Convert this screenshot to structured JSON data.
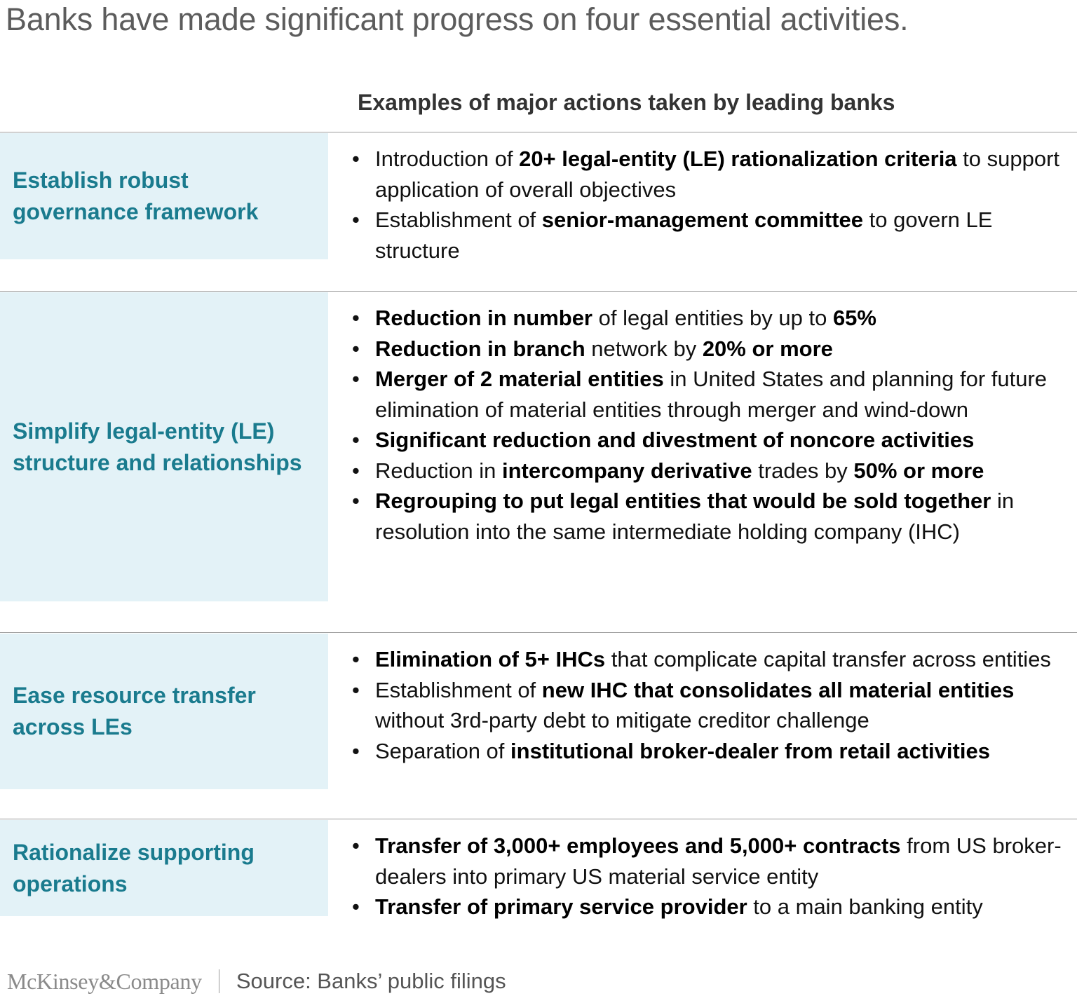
{
  "title": "Banks have made significant progress on four essential activities.",
  "column_header": "Examples of major actions taken by leading banks",
  "rows": [
    {
      "label": "Establish robust governance framework",
      "bullets": [
        [
          {
            "t": "Introduction of ",
            "b": false
          },
          {
            "t": "20+ legal-entity (LE) rationalization criteria",
            "b": true
          },
          {
            "t": " to support application of overall objectives",
            "b": false
          }
        ],
        [
          {
            "t": "Establishment of ",
            "b": false
          },
          {
            "t": "senior-management committee",
            "b": true
          },
          {
            "t": " to govern LE structure",
            "b": false
          }
        ]
      ]
    },
    {
      "label": "Simplify legal-entity (LE) structure and relationships",
      "bullets": [
        [
          {
            "t": "Reduction in number",
            "b": true
          },
          {
            "t": " of legal entities by up to ",
            "b": false
          },
          {
            "t": "65%",
            "b": true
          }
        ],
        [
          {
            "t": "Reduction in branch",
            "b": true
          },
          {
            "t": " network by ",
            "b": false
          },
          {
            "t": "20% or more",
            "b": true
          }
        ],
        [
          {
            "t": "Merger of 2 material entities",
            "b": true
          },
          {
            "t": " in United States and planning for future elimination of material entities through merger and wind-down",
            "b": false
          }
        ],
        [
          {
            "t": "Significant reduction and divestment of noncore activities",
            "b": true
          }
        ],
        [
          {
            "t": "Reduction in ",
            "b": false
          },
          {
            "t": "intercompany derivative",
            "b": true
          },
          {
            "t": " trades by ",
            "b": false
          },
          {
            "t": "50% or more",
            "b": true
          }
        ],
        [
          {
            "t": "Regrouping to put legal entities that would be sold together",
            "b": true
          },
          {
            "t": " in resolution into the same intermediate holding company (IHC)",
            "b": false
          }
        ]
      ]
    },
    {
      "label": "Ease resource transfer across LEs",
      "bullets": [
        [
          {
            "t": "Elimination of 5+ IHCs",
            "b": true
          },
          {
            "t": " that complicate capital transfer across entities",
            "b": false
          }
        ],
        [
          {
            "t": "Establishment of ",
            "b": false
          },
          {
            "t": "new IHC that consolidates all material entities",
            "b": true
          },
          {
            "t": " without 3rd-party debt to mitigate creditor challenge",
            "b": false
          }
        ],
        [
          {
            "t": "Separation of ",
            "b": false
          },
          {
            "t": "institutional broker-dealer from retail activities",
            "b": true
          }
        ]
      ]
    },
    {
      "label": "Rationalize supporting operations",
      "bullets": [
        [
          {
            "t": "Transfer of 3,000+ employees and 5,000+ contracts",
            "b": true
          },
          {
            "t": " from US broker-dealers into primary US material service entity",
            "b": false
          }
        ],
        [
          {
            "t": "Transfer of primary service provider",
            "b": true
          },
          {
            "t": " to a main banking entity",
            "b": false
          }
        ]
      ]
    }
  ],
  "footer": {
    "logo": "McKinsey&Company",
    "source": "Source: Banks’ public filings"
  }
}
